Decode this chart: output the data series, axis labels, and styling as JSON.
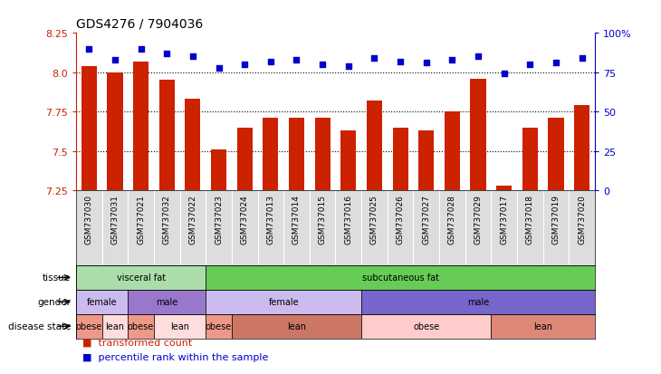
{
  "title": "GDS4276 / 7904036",
  "samples": [
    "GSM737030",
    "GSM737031",
    "GSM737021",
    "GSM737032",
    "GSM737022",
    "GSM737023",
    "GSM737024",
    "GSM737013",
    "GSM737014",
    "GSM737015",
    "GSM737016",
    "GSM737025",
    "GSM737026",
    "GSM737027",
    "GSM737028",
    "GSM737029",
    "GSM737017",
    "GSM737018",
    "GSM737019",
    "GSM737020"
  ],
  "bar_values": [
    8.04,
    8.0,
    8.07,
    7.95,
    7.83,
    7.51,
    7.65,
    7.71,
    7.71,
    7.71,
    7.63,
    7.82,
    7.65,
    7.63,
    7.75,
    7.96,
    7.28,
    7.65,
    7.71,
    7.79
  ],
  "dot_values": [
    90,
    83,
    90,
    87,
    85,
    78,
    80,
    82,
    83,
    80,
    79,
    84,
    82,
    81,
    83,
    85,
    74,
    80,
    81,
    84
  ],
  "ymin": 7.25,
  "ymax": 8.25,
  "yticks": [
    7.25,
    7.5,
    7.75,
    8.0,
    8.25
  ],
  "right_yticks": [
    0,
    25,
    50,
    75,
    100
  ],
  "bar_color": "#cc2200",
  "dot_color": "#0000cc",
  "grid_lines": [
    7.5,
    7.75,
    8.0
  ],
  "tissue_labels": [
    {
      "label": "visceral fat",
      "start": 0,
      "end": 5,
      "color": "#aaddaa"
    },
    {
      "label": "subcutaneous fat",
      "start": 5,
      "end": 20,
      "color": "#66cc55"
    }
  ],
  "gender_labels": [
    {
      "label": "female",
      "start": 0,
      "end": 2,
      "color": "#ccbbee"
    },
    {
      "label": "male",
      "start": 2,
      "end": 5,
      "color": "#9977cc"
    },
    {
      "label": "female",
      "start": 5,
      "end": 11,
      "color": "#ccbbee"
    },
    {
      "label": "male",
      "start": 11,
      "end": 20,
      "color": "#7766cc"
    }
  ],
  "disease_labels": [
    {
      "label": "obese",
      "start": 0,
      "end": 1,
      "color": "#ee9988"
    },
    {
      "label": "lean",
      "start": 1,
      "end": 2,
      "color": "#ffdddd"
    },
    {
      "label": "obese",
      "start": 2,
      "end": 3,
      "color": "#ee9988"
    },
    {
      "label": "lean",
      "start": 3,
      "end": 5,
      "color": "#ffdddd"
    },
    {
      "label": "obese",
      "start": 5,
      "end": 6,
      "color": "#ee9988"
    },
    {
      "label": "lean",
      "start": 6,
      "end": 11,
      "color": "#cc7766"
    },
    {
      "label": "obese",
      "start": 11,
      "end": 16,
      "color": "#ffcccc"
    },
    {
      "label": "lean",
      "start": 16,
      "end": 20,
      "color": "#dd8877"
    }
  ],
  "row_labels": [
    "tissue",
    "gender",
    "disease state"
  ],
  "legend_bar_label": "transformed count",
  "legend_dot_label": "percentile rank within the sample",
  "background_color": "#ffffff",
  "bar_width": 0.6,
  "xticklabel_bg": "#dddddd"
}
